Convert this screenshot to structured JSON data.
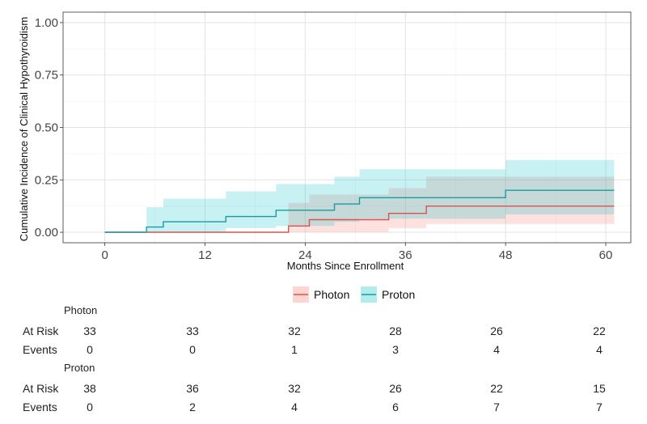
{
  "chart_data": {
    "type": "step",
    "xlabel": "Months Since Enrollment",
    "ylabel": "Cumulative Incidence of Clinical Hypothyroidism",
    "xlim": [
      -5,
      63
    ],
    "ylim": [
      -0.05,
      1.05
    ],
    "xticks": [
      0,
      12,
      24,
      36,
      48,
      60
    ],
    "xtick_labels": [
      "0",
      "12",
      "24",
      "36",
      "48",
      "60"
    ],
    "yticks": [
      0,
      0.25,
      0.5,
      0.75,
      1.0
    ],
    "ytick_labels": [
      "0.00",
      "0.25",
      "0.50",
      "0.75",
      "1.00"
    ],
    "grid": true,
    "legend_position": "bottom",
    "series": [
      {
        "name": "Photon",
        "color": "#d9534f",
        "fill": "#f8766d",
        "steps": [
          {
            "x": 0,
            "y": 0,
            "lower": 0,
            "upper": 0
          },
          {
            "x": 22,
            "y": 0.03,
            "lower": 0.0,
            "upper": 0.14
          },
          {
            "x": 24.5,
            "y": 0.06,
            "lower": 0.0,
            "upper": 0.18
          },
          {
            "x": 34,
            "y": 0.09,
            "lower": 0.02,
            "upper": 0.21
          },
          {
            "x": 38.5,
            "y": 0.125,
            "lower": 0.04,
            "upper": 0.265
          },
          {
            "x": 61,
            "y": 0.125,
            "lower": 0.04,
            "upper": 0.265
          }
        ]
      },
      {
        "name": "Proton",
        "color": "#1a9ba0",
        "fill": "#00bfc4",
        "steps": [
          {
            "x": 0,
            "y": 0,
            "lower": 0,
            "upper": 0
          },
          {
            "x": 5,
            "y": 0.025,
            "lower": 0.0,
            "upper": 0.12
          },
          {
            "x": 7,
            "y": 0.05,
            "lower": 0.0,
            "upper": 0.16
          },
          {
            "x": 14.5,
            "y": 0.075,
            "lower": 0.02,
            "upper": 0.195
          },
          {
            "x": 20.5,
            "y": 0.105,
            "lower": 0.03,
            "upper": 0.23
          },
          {
            "x": 27.5,
            "y": 0.135,
            "lower": 0.05,
            "upper": 0.265
          },
          {
            "x": 30.5,
            "y": 0.165,
            "lower": 0.065,
            "upper": 0.3
          },
          {
            "x": 48,
            "y": 0.2,
            "lower": 0.085,
            "upper": 0.345
          },
          {
            "x": 61,
            "y": 0.2,
            "lower": 0.085,
            "upper": 0.345
          }
        ]
      }
    ]
  },
  "risk_table": {
    "times": [
      0,
      12,
      24,
      36,
      48,
      60
    ],
    "row_labels": {
      "at_risk": "At Risk",
      "events": "Events"
    },
    "groups": [
      {
        "name": "Photon",
        "at_risk": [
          "33",
          "33",
          "32",
          "28",
          "26",
          "22"
        ],
        "events": [
          "0",
          "0",
          "1",
          "3",
          "4",
          "4"
        ]
      },
      {
        "name": "Proton",
        "at_risk": [
          "38",
          "36",
          "32",
          "26",
          "22",
          "15"
        ],
        "events": [
          "0",
          "2",
          "4",
          "6",
          "7",
          "7"
        ]
      }
    ]
  }
}
